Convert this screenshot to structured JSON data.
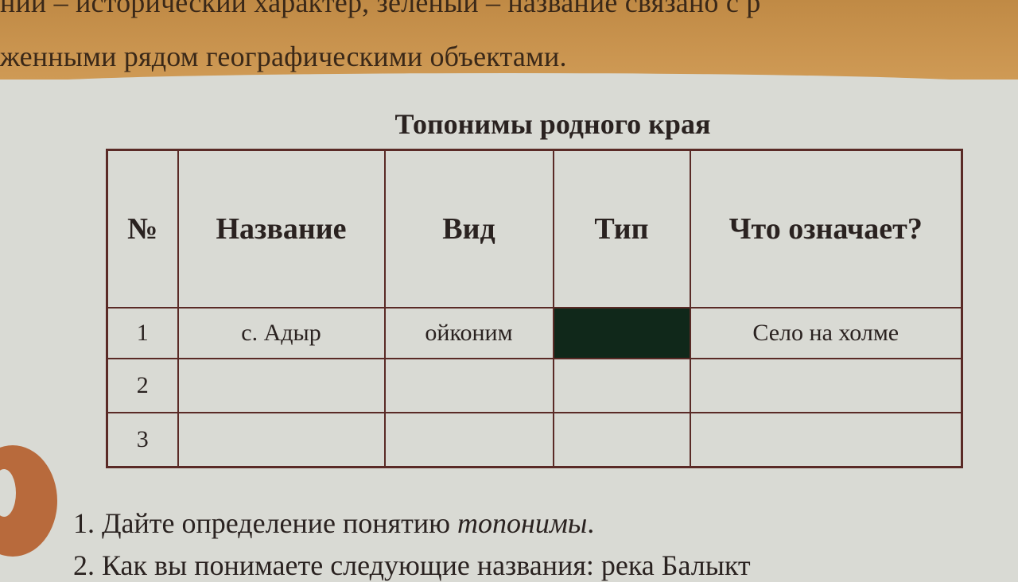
{
  "intro": {
    "line1": "ний – исторический характер, зеленый – название связано с р",
    "line2": "женными рядом географическими объектами."
  },
  "table": {
    "title": "Топонимы родного края",
    "headers": [
      "№",
      "Название",
      "Вид",
      "Тип",
      "Что означает?"
    ],
    "rows": [
      [
        "1",
        "с. Адыр",
        "ойконим",
        "",
        "Село на холме"
      ],
      [
        "2",
        "",
        "",
        "",
        ""
      ],
      [
        "3",
        "",
        "",
        "",
        ""
      ]
    ]
  },
  "questions": [
    "1. Дайте определение понятию ",
    "топонимы",
    ".",
    "2. Как вы понимаете следующие названия: река Балыкт"
  ],
  "colors": {
    "band": "#c8924a",
    "border": "#5a2a26",
    "redacted_cell": "#10281a"
  }
}
